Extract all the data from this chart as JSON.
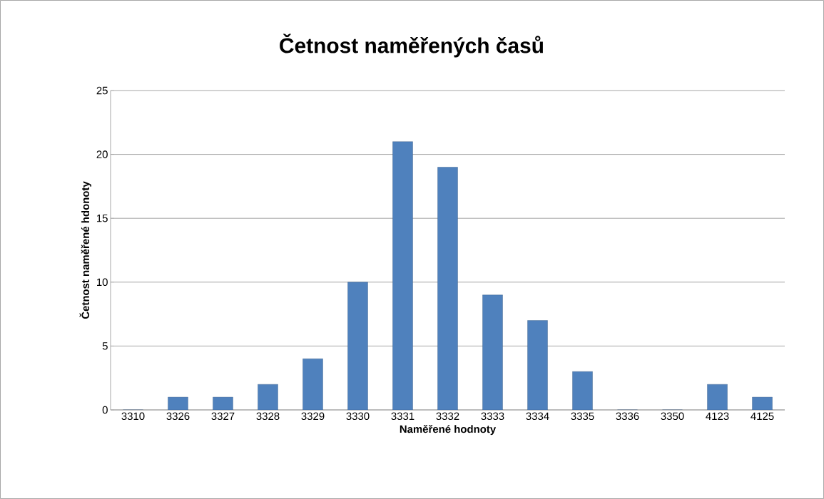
{
  "chart_data": {
    "type": "bar",
    "title": "Četnost naměřených časů",
    "xlabel": "Naměřené hodnoty",
    "ylabel": "Četnost naměřené hdonoty",
    "categories": [
      "3310",
      "3326",
      "3327",
      "3328",
      "3329",
      "3330",
      "3331",
      "3332",
      "3333",
      "3334",
      "3335",
      "3336",
      "3350",
      "4123",
      "4125"
    ],
    "values": [
      0,
      1,
      1,
      2,
      4,
      10,
      21,
      19,
      9,
      7,
      3,
      0,
      0,
      2,
      1
    ],
    "color": "#4f81bd",
    "ylim": [
      0,
      25
    ],
    "yticks": [
      0,
      5,
      10,
      15,
      20,
      25
    ],
    "grid": "y"
  }
}
